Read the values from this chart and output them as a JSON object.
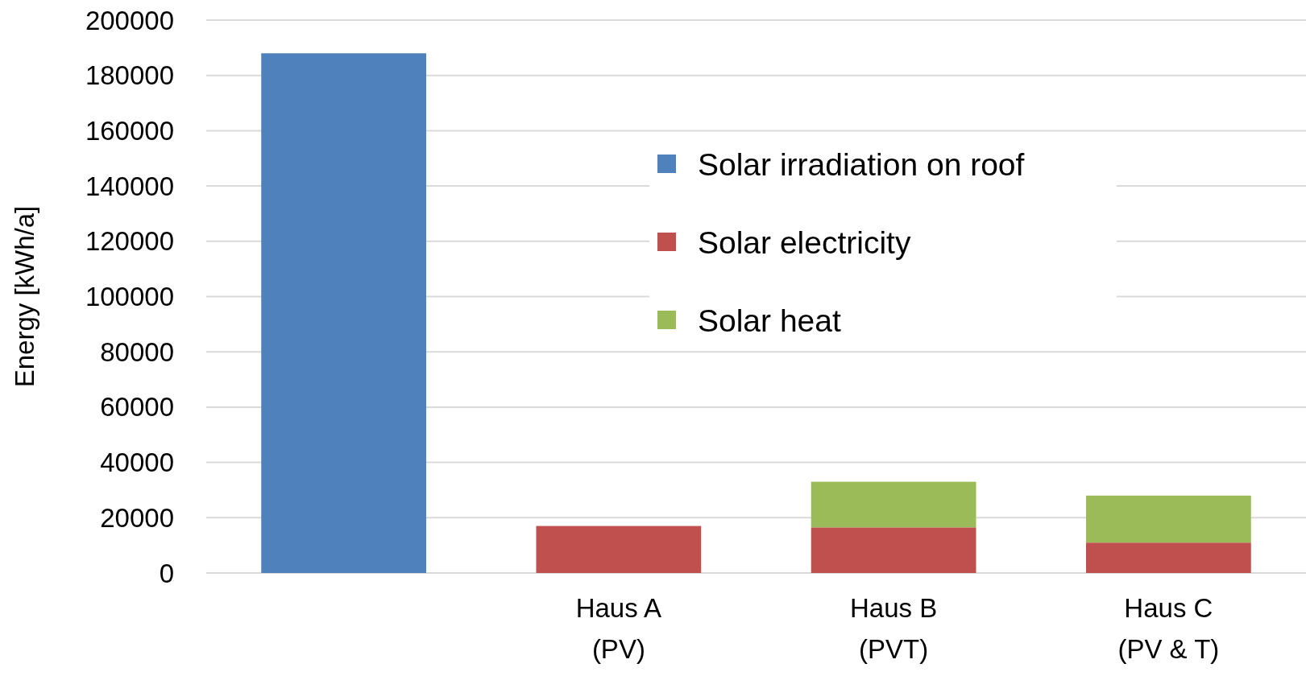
{
  "chart_data": {
    "type": "bar",
    "stacked": true,
    "ylabel": "Energy [kWh/a]",
    "categories": [
      null,
      "Haus A\n(PV)",
      "Haus B\n(PVT)",
      "Haus C\n(PV & T)"
    ],
    "series": [
      {
        "name": "Solar irradiation on roof",
        "color": "#4f81bd",
        "values": [
          188000,
          null,
          null,
          null
        ]
      },
      {
        "name": "Solar electricity",
        "color": "#c0504d",
        "values": [
          null,
          17000,
          16500,
          11000
        ]
      },
      {
        "name": "Solar heat",
        "color": "#9bbb59",
        "values": [
          null,
          null,
          16500,
          17000
        ]
      }
    ],
    "ylim": [
      0,
      200000
    ],
    "yticks": [
      0,
      20000,
      40000,
      60000,
      80000,
      100000,
      120000,
      140000,
      160000,
      180000,
      200000
    ],
    "grid": "y",
    "legend": "right"
  }
}
